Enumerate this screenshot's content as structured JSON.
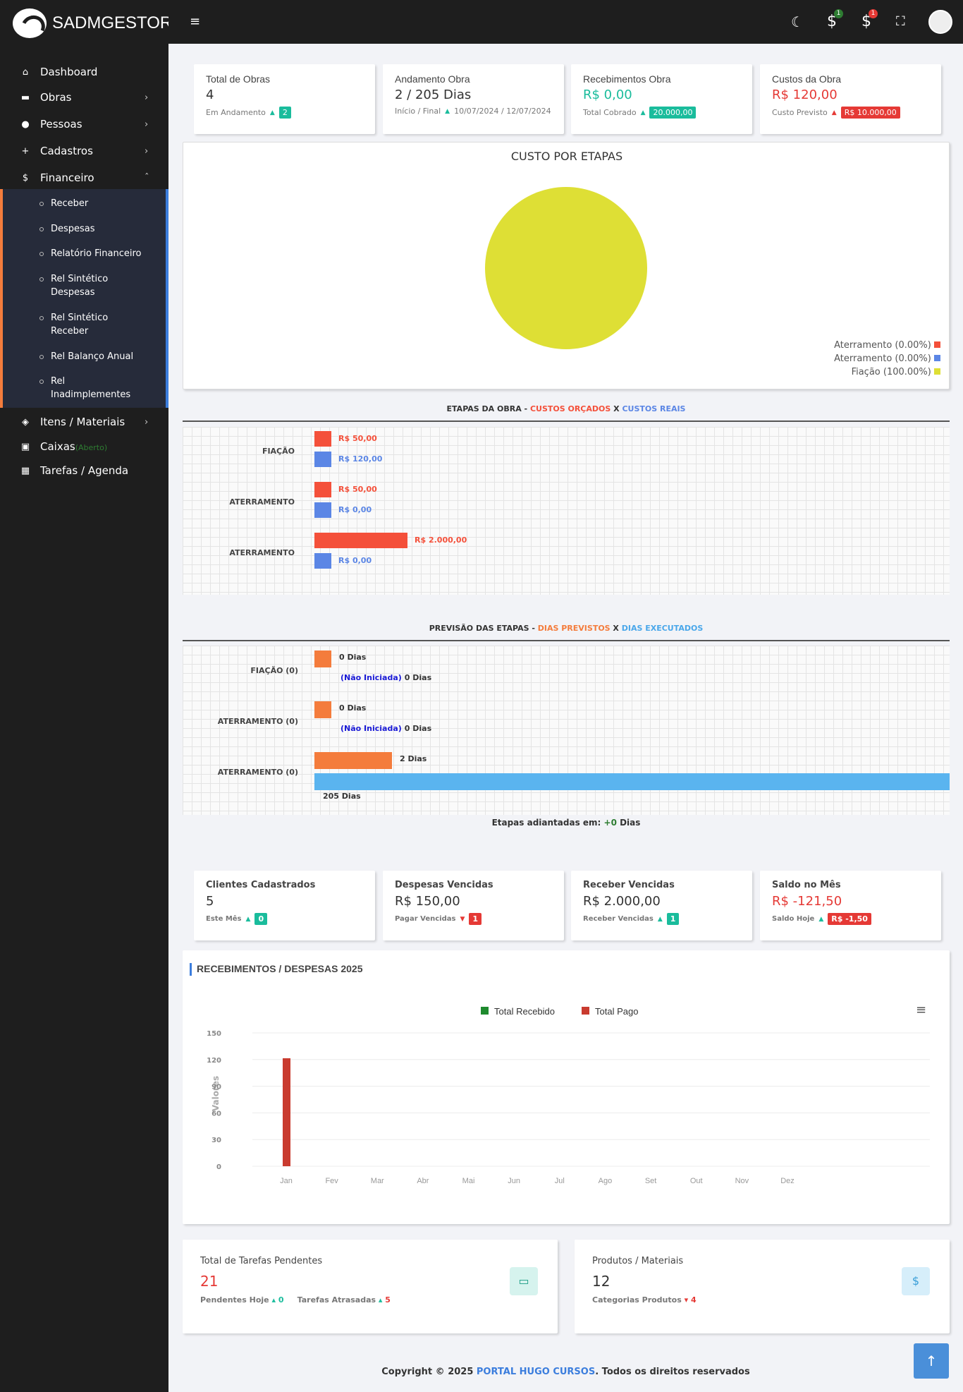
{
  "brand": "SADMGESTOR",
  "sidebar": {
    "items": [
      {
        "label": "Dashboard"
      },
      {
        "label": "Obras"
      },
      {
        "label": "Pessoas"
      },
      {
        "label": "Cadastros"
      },
      {
        "label": "Financeiro"
      },
      {
        "label": "Itens / Materiais"
      },
      {
        "label": "Caixas",
        "badge": "(Aberto)"
      },
      {
        "label": "Tarefas / Agenda"
      }
    ],
    "sub": [
      "Receber",
      "Despesas",
      "Relatório Financeiro",
      "Rel Sintético Despesas",
      "Rel Sintético Receber",
      "Rel Balanço Anual",
      "Rel Inadimplementes"
    ]
  },
  "topbar": {
    "badge1": "1",
    "badge2": "1"
  },
  "kpis": [
    {
      "title": "Total de Obras",
      "value": "4",
      "sub": "Em Andamento",
      "tag": "2"
    },
    {
      "title": "Andamento Obra",
      "value": "2 / 205 Dias",
      "sub": "Início / Final",
      "extra": "10/07/2024 / 12/07/2024"
    },
    {
      "title": "Recebimentos Obra",
      "value": "R$ 0,00",
      "sub": "Total Cobrado",
      "tag": "20.000,00"
    },
    {
      "title": "Custos da Obra",
      "value": "R$ 120,00",
      "sub": "Custo Previsto",
      "tag": "R$ 10.000,00"
    }
  ],
  "pie": {
    "title": "CUSTO POR ETAPAS",
    "legend": [
      "Aterramento (0.00%)",
      "Aterramento (0.00%)",
      "Fiação (100.00%)"
    ],
    "colors": [
      "#f4503a",
      "#5b86e5",
      "#dedf35"
    ]
  },
  "chart_data": [
    {
      "type": "pie",
      "title": "CUSTO POR ETAPAS",
      "categories": [
        "Aterramento",
        "Aterramento",
        "Fiação"
      ],
      "values": [
        0,
        0,
        100
      ]
    },
    {
      "type": "bar",
      "title": "ETAPAS DA OBRA - CUSTOS ORÇADOS X CUSTOS REAIS",
      "categories": [
        "FIAÇÃO",
        "ATERRAMENTO",
        "ATERRAMENTO"
      ],
      "series": [
        {
          "name": "CUSTOS ORÇADOS",
          "values": [
            50,
            50,
            2000
          ]
        },
        {
          "name": "CUSTOS REAIS",
          "values": [
            120,
            0,
            0
          ]
        }
      ]
    },
    {
      "type": "bar",
      "title": "PREVISÃO DAS ETAPAS - DIAS PREVISTOS X DIAS EXECUTADOS",
      "categories": [
        "FIAÇÃO (0)",
        "ATERRAMENTO (0)",
        "ATERRAMENTO (0)"
      ],
      "series": [
        {
          "name": "DIAS PREVISTOS",
          "values": [
            0,
            0,
            2
          ]
        },
        {
          "name": "DIAS EXECUTADOS",
          "values": [
            0,
            0,
            205
          ]
        }
      ]
    },
    {
      "type": "bar",
      "title": "RECEBIMENTOS / DESPESAS 2025",
      "ylabel": "Valores",
      "ylim": [
        0,
        150
      ],
      "categories": [
        "Jan",
        "Fev",
        "Mar",
        "Abr",
        "Mai",
        "Jun",
        "Jul",
        "Ago",
        "Set",
        "Out",
        "Nov",
        "Dez"
      ],
      "series": [
        {
          "name": "Total Recebido",
          "values": [
            0,
            0,
            0,
            0,
            0,
            0,
            0,
            0,
            0,
            0,
            0,
            0
          ]
        },
        {
          "name": "Total Pago",
          "values": [
            121.5,
            0,
            0,
            0,
            0,
            0,
            0,
            0,
            0,
            0,
            0,
            0
          ]
        }
      ]
    }
  ],
  "cost": {
    "t1": "ETAPAS DA OBRA - ",
    "t2": "CUSTOS ORÇADOS",
    "t3": " X ",
    "t4": "CUSTOS REAIS",
    "cats": [
      "FIAÇÃO",
      "ATERRAMENTO",
      "ATERRAMENTO"
    ],
    "orc": [
      "R$ 50,00",
      "R$ 50,00",
      "R$ 2.000,00"
    ],
    "real": [
      "R$ 120,00",
      "R$ 0,00",
      "R$ 0,00"
    ]
  },
  "prev": {
    "t1": "PREVISÃO DAS ETAPAS - ",
    "t2": "DIAS PREVISTOS",
    "t3": " X ",
    "t4": "DIAS EXECUTADOS",
    "cats": [
      "FIAÇÃO (0)",
      "ATERRAMENTO (0)",
      "ATERRAMENTO (0)"
    ],
    "prev": [
      "0 Dias",
      "0 Dias",
      "2 Dias"
    ],
    "nao": "(Não Iniciada)",
    "exec0": "0 Dias",
    "exec3": "205 Dias",
    "foot1": "Etapas adiantadas em: ",
    "foot2": "+0",
    "foot3": " Dias"
  },
  "kpis2": [
    {
      "title": "Clientes Cadastrados",
      "value": "5",
      "sub": "Este Mês",
      "tag": "0"
    },
    {
      "title": "Despesas Vencidas",
      "value": "R$ 150,00",
      "sub": "Pagar Vencidas",
      "tag": "1"
    },
    {
      "title": "Receber Vencidas",
      "value": "R$ 2.000,00",
      "sub": "Receber Vencidas",
      "tag": "1"
    },
    {
      "title": "Saldo no Mês",
      "value": "R$ -121,50",
      "sub": "Saldo Hoje",
      "tag": "R$ -1,50"
    }
  ],
  "rd": {
    "title": "RECEBIMENTOS / DESPESAS 2025",
    "legend": [
      "Total Recebido",
      "Total Pago"
    ],
    "ylabel": "Valores",
    "yticks": [
      "150",
      "120",
      "90",
      "60",
      "30",
      "0"
    ],
    "months": [
      "Jan",
      "Fev",
      "Mar",
      "Abr",
      "Mai",
      "Jun",
      "Jul",
      "Ago",
      "Set",
      "Out",
      "Nov",
      "Dez"
    ]
  },
  "bottom": [
    {
      "title": "Total de Tarefas Pendentes",
      "value": "21",
      "a": "Pendentes Hoje",
      "av": "0",
      "b": "Tarefas Atrasadas",
      "bv": "5"
    },
    {
      "title": "Produtos / Materiais",
      "value": "12",
      "a": "Categorias Produtos",
      "av": "4"
    }
  ],
  "footer": {
    "a": "Copyright © 2025 ",
    "b": "PORTAL HUGO CURSOS",
    "c": ". Todos os direitos reservados"
  }
}
